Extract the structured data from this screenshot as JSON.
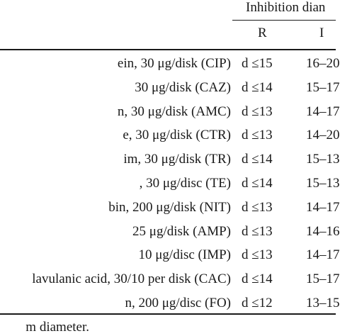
{
  "table": {
    "group_header": "Inhibition dian",
    "col_r": "R",
    "col_i": "I",
    "rows": [
      {
        "agent": "ein, 30 μg/disk (CIP)",
        "r": "d ≤15",
        "i": "16–20"
      },
      {
        "agent": "30 μg/disk (CAZ)",
        "r": "d ≤14",
        "i": "15–17"
      },
      {
        "agent": "n, 30 μg/disk (AMC)",
        "r": "d ≤13",
        "i": "14–17"
      },
      {
        "agent": "e, 30 μg/disk (CTR)",
        "r": "d ≤13",
        "i": "14–20"
      },
      {
        "agent": "im, 30 μg/disk (TR)",
        "r": "d ≤14",
        "i": "15–13"
      },
      {
        "agent": ", 30 μg/disc (TE)",
        "r": "d ≤14",
        "i": "15–13"
      },
      {
        "agent": "bin, 200 μg/disk (NIT)",
        "r": "d ≤13",
        "i": "14–17"
      },
      {
        "agent": "25 μg/disk (AMP)",
        "r": "d ≤13",
        "i": "14–16"
      },
      {
        "agent": "10 μg/disc (IMP)",
        "r": "d ≤13",
        "i": "14–17"
      },
      {
        "agent": "lavulanic acid, 30/10 per disk (CAC)",
        "r": "d ≤14",
        "i": "15–17"
      },
      {
        "agent": "n, 200 μg/disc (FO)",
        "r": "d ≤12",
        "i": "13–15"
      }
    ]
  },
  "footnote": "m diameter."
}
